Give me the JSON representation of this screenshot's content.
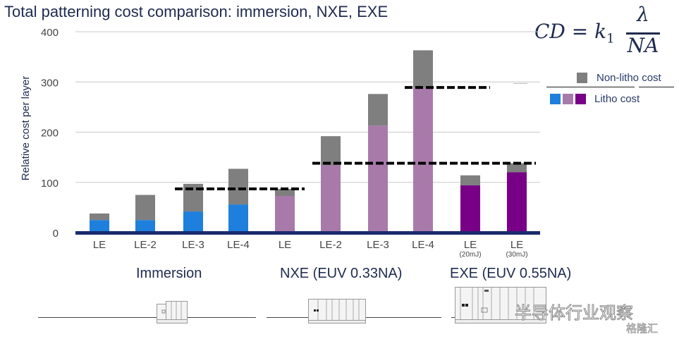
{
  "chart_data": {
    "type": "bar",
    "stacked": true,
    "title": "Total patterning cost comparison: immersion, NXE, EXE",
    "ylabel": "Relative cost per layer",
    "xlabel": "",
    "ylim": [
      0,
      400
    ],
    "yticks": [
      "0",
      "100",
      "200",
      "300",
      "400"
    ],
    "grid": true,
    "legend_position": "top-right",
    "categories": [
      {
        "label": "LE",
        "sub": "",
        "group": "Immersion"
      },
      {
        "label": "LE-2",
        "sub": "",
        "group": "Immersion"
      },
      {
        "label": "LE-3",
        "sub": "",
        "group": "Immersion"
      },
      {
        "label": "LE-4",
        "sub": "",
        "group": "Immersion"
      },
      {
        "label": "LE",
        "sub": "",
        "group": "NXE (EUV 0.33NA)"
      },
      {
        "label": "LE-2",
        "sub": "",
        "group": "NXE (EUV 0.33NA)"
      },
      {
        "label": "LE-3",
        "sub": "",
        "group": "NXE (EUV 0.33NA)"
      },
      {
        "label": "LE-4",
        "sub": "",
        "group": "NXE (EUV 0.33NA)"
      },
      {
        "label": "LE",
        "sub": "(20mJ)",
        "group": "EXE (EUV 0.55NA)"
      },
      {
        "label": "LE",
        "sub": "(30mJ)",
        "group": "EXE (EUV 0.55NA)"
      }
    ],
    "series": [
      {
        "name": "Litho cost",
        "values": [
          25,
          25,
          42,
          56,
          73,
          134,
          213,
          289,
          94,
          120
        ],
        "colors": [
          "#1f7fdc",
          "#1f7fdc",
          "#1f7fdc",
          "#1f7fdc",
          "#a87aaa",
          "#a87aaa",
          "#a87aaa",
          "#a87aaa",
          "#780087",
          "#780087"
        ]
      },
      {
        "name": "Non-litho cost",
        "values": [
          13,
          50,
          55,
          71,
          14,
          58,
          63,
          74,
          20,
          18
        ],
        "color": "#7f7f7f"
      }
    ],
    "reference_lines": [
      {
        "value": 87,
        "from_category": 2,
        "to_category": 4
      },
      {
        "value": 138,
        "from_category": 5,
        "to_category": 9
      },
      {
        "value": 289,
        "from_category": 7,
        "to_category": 8
      }
    ],
    "groups": [
      "Immersion",
      "NXE (EUV 0.33NA)",
      "EXE (EUV 0.55NA)"
    ]
  },
  "formula": {
    "lhs": "CD = k",
    "subscript": "1",
    "numerator": "λ",
    "denominator": "NA"
  },
  "legend": {
    "non_litho_label": "Non-litho cost",
    "litho_label": "Litho cost",
    "non_litho_color": "#7f7f7f",
    "litho_colors": [
      "#1f7fdc",
      "#a87aaa",
      "#780087"
    ]
  },
  "colors": {
    "axis": "#1a2a6c",
    "grid": "#c8c8c8",
    "text": "#1f2a4f",
    "tick": "#444444"
  },
  "watermark": {
    "text": "半导体行业观察",
    "brand": "格隆汇"
  }
}
